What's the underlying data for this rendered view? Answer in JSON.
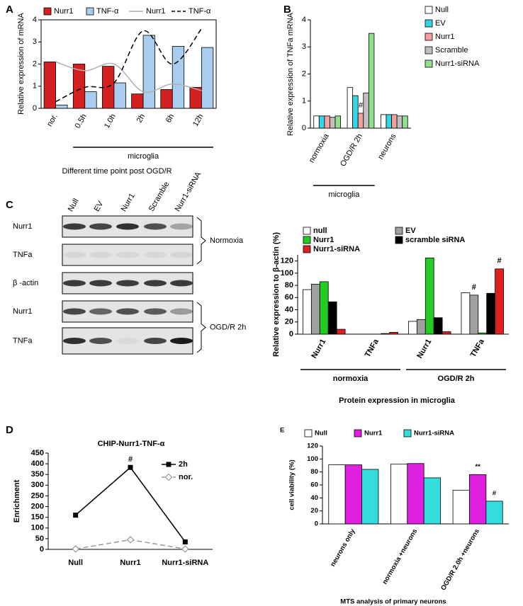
{
  "chart_data": [
    {
      "panel": "A",
      "type": "bar",
      "y_label": "Relative expression of mRNA",
      "x_label": "Different time point post OGD/R",
      "categories": [
        "nor.",
        "0.5h",
        "1.0h",
        "2h",
        "6h",
        "12h"
      ],
      "groups": [
        {
          "label": "microglia",
          "span": [
            1,
            5
          ]
        }
      ],
      "series": [
        {
          "name": "Nurr1",
          "color": "#d42020",
          "values": [
            2.1,
            2.0,
            1.9,
            0.65,
            0.85,
            0.95
          ]
        },
        {
          "name": "TNF-α",
          "color": "#a9cdee",
          "values": [
            0.15,
            0.75,
            1.15,
            3.3,
            2.8,
            2.75
          ]
        },
        {
          "name": "Nurr1",
          "color": "#b0b0b0",
          "style": "line",
          "values": [
            2.1,
            1.7,
            2.0,
            0.75,
            1.1,
            0.8
          ]
        },
        {
          "name": "TNF-α",
          "color": "#000000",
          "style": "line",
          "dash": true,
          "values": [
            0.3,
            0.95,
            1.15,
            3.5,
            2.0,
            3.6
          ]
        }
      ],
      "ylim": [
        0,
        4
      ],
      "yticks": [
        0,
        1,
        2,
        3,
        4
      ],
      "smooth": true,
      "legend": "top"
    },
    {
      "panel": "B",
      "type": "bar",
      "y_label": "Relative expression of TNFa mRNA",
      "categories": [
        "normoxia",
        "OGD/R 2h",
        "neurons"
      ],
      "groups": [
        {
          "label": "microglia",
          "span": [
            0,
            1
          ]
        }
      ],
      "series": [
        {
          "name": "Null",
          "color": "#ffffff",
          "values": [
            0.45,
            1.5,
            0.5
          ]
        },
        {
          "name": "EV",
          "color": "#33d6e6",
          "values": [
            0.45,
            1.2,
            0.5
          ]
        },
        {
          "name": "Nurr1",
          "color": "#f4a0a0",
          "values": [
            0.45,
            0.55,
            0.5
          ]
        },
        {
          "name": "Scramble",
          "color": "#c0c0c0",
          "values": [
            0.4,
            1.3,
            0.45
          ]
        },
        {
          "name": "Nurr1-siRNA",
          "color": "#90e090",
          "values": [
            0.45,
            3.5,
            0.45
          ]
        }
      ],
      "ylim": [
        0,
        4
      ],
      "yticks": [
        0,
        1,
        2,
        3,
        4
      ],
      "annotations": [
        {
          "text": "#",
          "category": 1,
          "series": 2
        }
      ],
      "legend": "right"
    },
    {
      "panel": "C",
      "type": "blot",
      "lanes": [
        "Null",
        "EV",
        "Nurr1",
        "Scramble",
        "Nurr1-siRNA"
      ],
      "rows": [
        "Nurr1",
        "TNFa",
        "β -actin",
        "Nurr1",
        "TNFa"
      ],
      "groups": [
        {
          "label": "Normoxia",
          "rows": [
            0,
            1
          ]
        },
        {
          "label": "OGD/R 2h",
          "rows": [
            3,
            4
          ]
        }
      ]
    },
    {
      "type": "bar",
      "y_label": "Relative expression to β-actin (%)",
      "x_label": "Protein expression in microglia",
      "categories": [
        "Nurr1",
        "TNFa",
        "Nurr1",
        "TNFa"
      ],
      "groups": [
        {
          "label": "normoxia",
          "span": [
            0,
            1
          ]
        },
        {
          "label": "OGD/R 2h",
          "span": [
            2,
            3
          ]
        }
      ],
      "series": [
        {
          "name": "null",
          "color": "#ffffff",
          "values": [
            73,
            0,
            21,
            68
          ]
        },
        {
          "name": "EV",
          "color": "#a0a0a0",
          "values": [
            82,
            0,
            24,
            64
          ]
        },
        {
          "name": "Nurr1",
          "color": "#22cc22",
          "values": [
            86,
            0,
            125,
            2
          ]
        },
        {
          "name": "scramble siRNA",
          "color": "#000000",
          "values": [
            53,
            1,
            27,
            67
          ]
        },
        {
          "name": "Nurr1-siRNA",
          "color": "#e02020",
          "values": [
            8,
            3,
            4,
            107
          ]
        }
      ],
      "ylim": [
        0,
        130
      ],
      "yticks": [
        0,
        20,
        40,
        60,
        80,
        100,
        120
      ],
      "annotations": [
        {
          "text": "#",
          "category": 3,
          "series": 1
        },
        {
          "text": "#",
          "category": 3,
          "series": 4
        }
      ],
      "legend": "top"
    },
    {
      "panel": "D",
      "type": "line",
      "title": "CHIP-Nurr1-TNF-α",
      "y_label": "Enrichment",
      "categories": [
        "Null",
        "Nurr1",
        "Nurr1-siRNA"
      ],
      "series": [
        {
          "name": "2h",
          "color": "#000000",
          "marker": "square",
          "values": [
            160,
            383,
            35
          ]
        },
        {
          "name": "nor.",
          "color": "#999999",
          "marker": "diamond",
          "dash": true,
          "values": [
            2,
            45,
            2
          ]
        }
      ],
      "ylim": [
        0,
        450
      ],
      "yticks": [
        0,
        50,
        100,
        150,
        200,
        250,
        300,
        350,
        400,
        450
      ],
      "annotations": [
        {
          "text": "#",
          "category": 1,
          "series": 0
        }
      ],
      "legend": "upper right"
    },
    {
      "panel": "E",
      "type": "bar",
      "y_label": "cell viability (%)",
      "x_label": "MTS analysis of primary neurons",
      "categories": [
        "neurons only",
        "normoxia +neurons",
        "OGD/R 2.0h +neurons"
      ],
      "series": [
        {
          "name": "Null",
          "color": "#ffffff",
          "values": [
            91,
            92,
            52
          ]
        },
        {
          "name": "Nurr1",
          "color": "#e020e0",
          "values": [
            91,
            93,
            76
          ]
        },
        {
          "name": "Nurr1-siRNA",
          "color": "#33dddd",
          "values": [
            84,
            71,
            35
          ]
        }
      ],
      "ylim": [
        0,
        120
      ],
      "yticks": [
        0,
        20,
        40,
        60,
        80,
        100,
        120
      ],
      "annotations": [
        {
          "text": "**",
          "category": 2,
          "series": 1
        },
        {
          "text": "#",
          "category": 2,
          "series": 2
        }
      ],
      "legend": "top"
    }
  ]
}
